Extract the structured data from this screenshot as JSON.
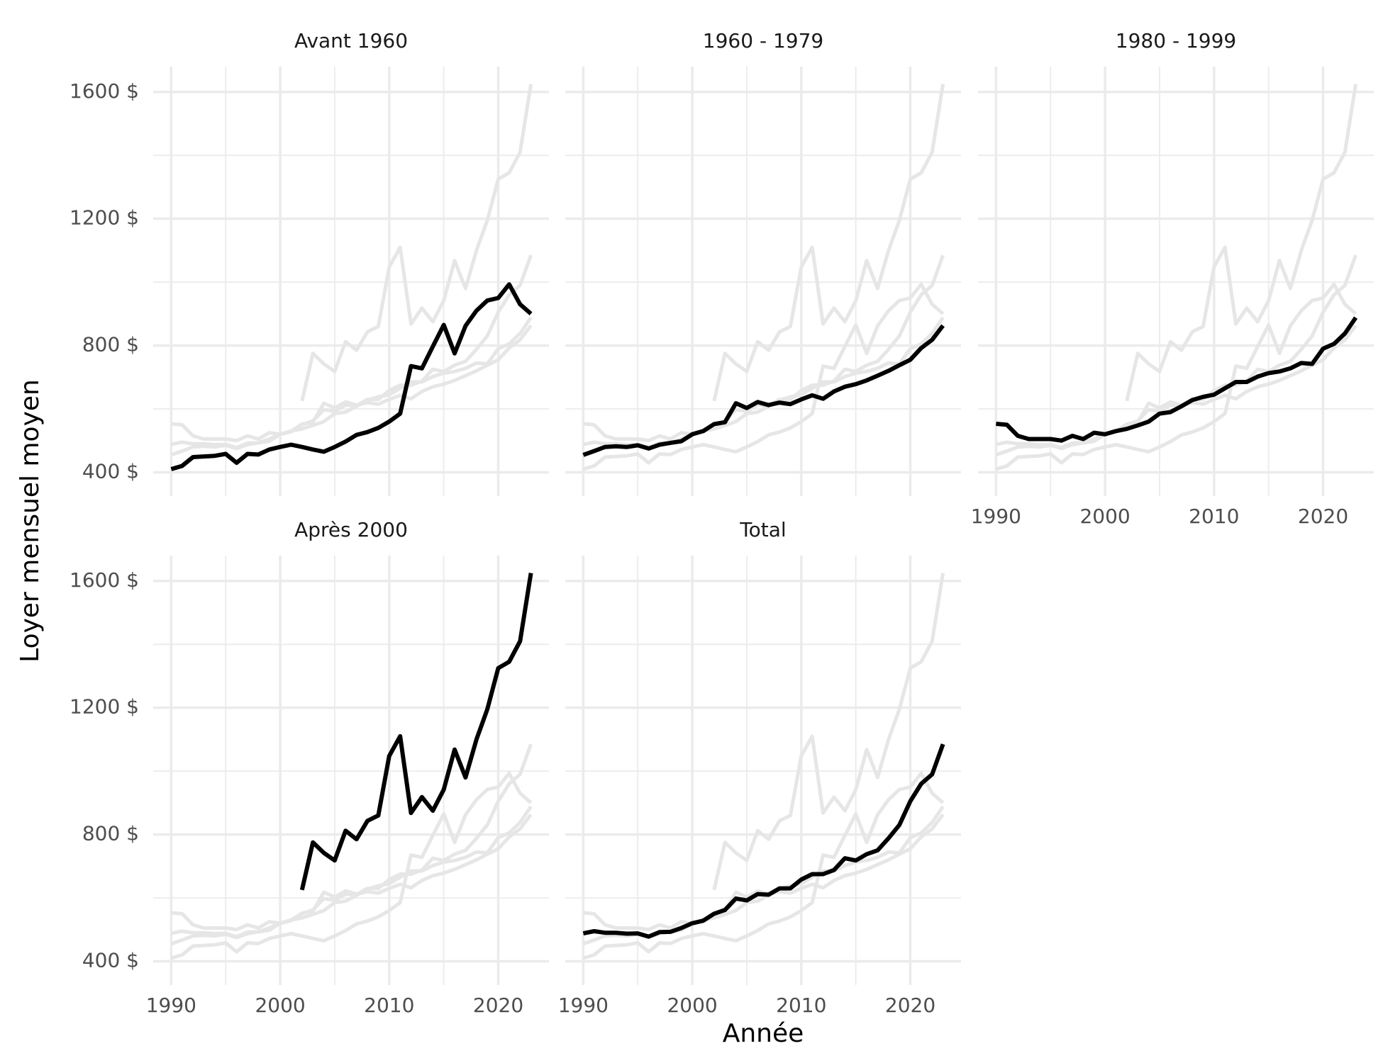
{
  "chart_data": {
    "type": "line",
    "facet": true,
    "x_label": "Année",
    "y_label": "Loyer mensuel moyen",
    "x": [
      1990,
      1991,
      1992,
      1993,
      1994,
      1995,
      1996,
      1997,
      1998,
      1999,
      2000,
      2001,
      2002,
      2003,
      2004,
      2005,
      2006,
      2007,
      2008,
      2009,
      2010,
      2011,
      2012,
      2013,
      2014,
      2015,
      2016,
      2017,
      2018,
      2019,
      2020,
      2021,
      2022,
      2023
    ],
    "highlight_color": "#000000",
    "background_color": "#e6e6e6",
    "series": [
      {
        "name": "Avant 1960",
        "values": [
          410,
          420,
          448,
          450,
          452,
          458,
          430,
          458,
          456,
          472,
          480,
          487,
          480,
          472,
          465,
          480,
          497,
          518,
          527,
          540,
          560,
          585,
          735,
          728,
          797,
          865,
          775,
          862,
          910,
          942,
          950,
          993,
          930,
          900
        ]
      },
      {
        "name": "1960 - 1979",
        "values": [
          455,
          467,
          480,
          482,
          480,
          485,
          475,
          487,
          493,
          498,
          520,
          530,
          552,
          558,
          618,
          603,
          622,
          612,
          620,
          615,
          630,
          643,
          632,
          655,
          670,
          678,
          690,
          705,
          720,
          738,
          755,
          792,
          818,
          863
        ]
      },
      {
        "name": "1980 - 1999",
        "values": [
          553,
          550,
          515,
          505,
          505,
          505,
          500,
          515,
          505,
          525,
          520,
          530,
          537,
          548,
          560,
          585,
          590,
          608,
          628,
          638,
          645,
          665,
          685,
          685,
          702,
          713,
          718,
          728,
          745,
          742,
          790,
          805,
          838,
          888
        ]
      },
      {
        "name": "Après 2000",
        "values": [
          null,
          null,
          null,
          null,
          null,
          null,
          null,
          null,
          null,
          null,
          null,
          null,
          625,
          775,
          742,
          718,
          812,
          785,
          843,
          860,
          1048,
          1110,
          868,
          918,
          875,
          942,
          1068,
          980,
          1100,
          1195,
          1325,
          1345,
          1410,
          1625
        ]
      },
      {
        "name": "Total",
        "values": [
          488,
          495,
          490,
          490,
          487,
          488,
          478,
          492,
          493,
          505,
          520,
          528,
          550,
          562,
          598,
          592,
          612,
          610,
          630,
          630,
          658,
          675,
          675,
          688,
          725,
          718,
          738,
          750,
          788,
          830,
          905,
          960,
          990,
          1085
        ]
      }
    ],
    "xlim": [
      1988.35,
      2024.65
    ],
    "xticks": [
      1990,
      2000,
      2010,
      2020
    ],
    "ylim": [
      325,
      1680
    ],
    "yticks": [
      {
        "value": 400,
        "label": "400 $"
      },
      {
        "value": 800,
        "label": "800 $"
      },
      {
        "value": 1200,
        "label": "1200 $"
      },
      {
        "value": 1600,
        "label": "1600 $"
      }
    ],
    "grid": true
  }
}
